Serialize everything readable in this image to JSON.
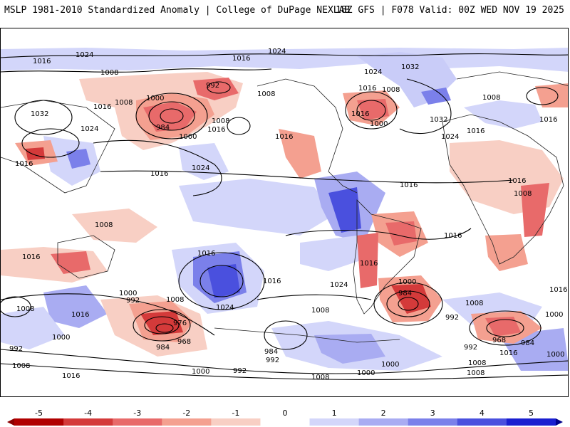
{
  "header": {
    "left_title": "MSLP 1981-2010 Standardized Anomaly | College of DuPage NEXLAB",
    "right_title": "18Z GFS | F078 Valid: 00Z WED NOV 19 2025"
  },
  "colorbar": {
    "ticks": [
      "-5",
      "-4",
      "-3",
      "-2",
      "-1",
      "0",
      "1",
      "2",
      "3",
      "4",
      "5"
    ],
    "colors": [
      "#b00000",
      "#d43a3a",
      "#e86a6a",
      "#f4a090",
      "#f8cfc4",
      "#ffffff",
      "#d3d6fa",
      "#a9acf2",
      "#7b80ea",
      "#4a50de",
      "#1a1fd0"
    ]
  },
  "contour_labels": [
    {
      "text": "1024"
    },
    {
      "text": "1016"
    },
    {
      "text": "1024"
    },
    {
      "text": "1016"
    },
    {
      "text": "1008"
    },
    {
      "text": "1024"
    },
    {
      "text": "1032"
    },
    {
      "text": "1008"
    },
    {
      "text": "1016"
    },
    {
      "text": "1008"
    },
    {
      "text": "992"
    },
    {
      "text": "1000"
    },
    {
      "text": "1008"
    },
    {
      "text": "1016"
    },
    {
      "text": "1032"
    },
    {
      "text": "1016"
    },
    {
      "text": "984"
    },
    {
      "text": "1000"
    },
    {
      "text": "1016"
    },
    {
      "text": "1008"
    },
    {
      "text": "1016"
    },
    {
      "text": "1016"
    },
    {
      "text": "1000"
    },
    {
      "text": "1032"
    },
    {
      "text": "1024"
    },
    {
      "text": "1016"
    },
    {
      "text": "1024"
    },
    {
      "text": "1016"
    },
    {
      "text": "1016"
    },
    {
      "text": "1008"
    },
    {
      "text": "1016"
    },
    {
      "text": "1024"
    },
    {
      "text": "1008"
    },
    {
      "text": "1008"
    },
    {
      "text": "1016"
    },
    {
      "text": "1016"
    },
    {
      "text": "1016"
    },
    {
      "text": "1016"
    },
    {
      "text": "1024"
    },
    {
      "text": "1000"
    },
    {
      "text": "992"
    },
    {
      "text": "1008"
    },
    {
      "text": "1016"
    },
    {
      "text": "1024"
    },
    {
      "text": "1008"
    },
    {
      "text": "1016"
    },
    {
      "text": "1000"
    },
    {
      "text": "984"
    },
    {
      "text": "1008"
    },
    {
      "text": "992"
    },
    {
      "text": "1016"
    },
    {
      "text": "1000"
    },
    {
      "text": "976"
    },
    {
      "text": "968"
    },
    {
      "text": "984"
    },
    {
      "text": "992"
    },
    {
      "text": "1000"
    },
    {
      "text": "984"
    },
    {
      "text": "992"
    },
    {
      "text": "1000"
    },
    {
      "text": "1008"
    },
    {
      "text": "968"
    },
    {
      "text": "984"
    },
    {
      "text": "1000"
    },
    {
      "text": "992"
    },
    {
      "text": "1016"
    },
    {
      "text": "1008"
    },
    {
      "text": "1000"
    },
    {
      "text": "992"
    },
    {
      "text": "1008"
    },
    {
      "text": "1016"
    },
    {
      "text": "1008"
    },
    {
      "text": "1000"
    },
    {
      "text": "1008"
    },
    {
      "text": "1016"
    }
  ]
}
